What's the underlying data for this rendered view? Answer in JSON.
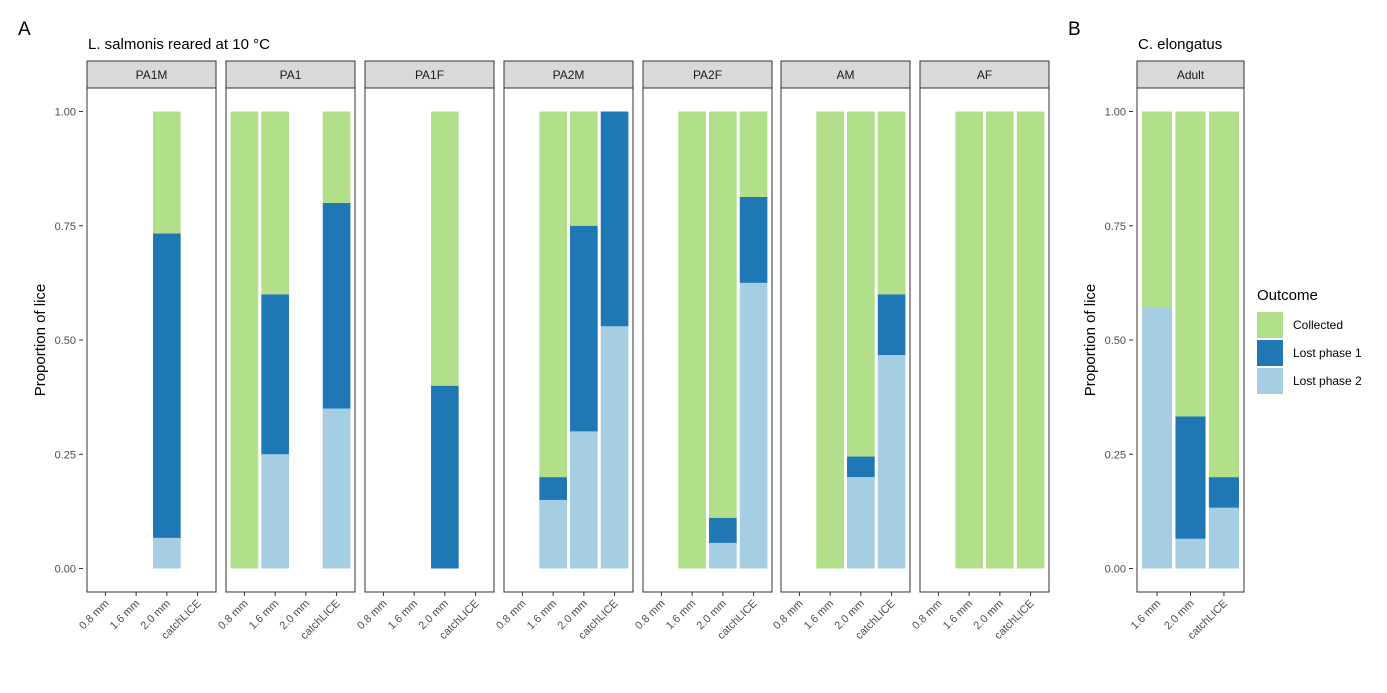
{
  "panel_labels": {
    "a": "A",
    "b": "B"
  },
  "colors": {
    "Collected": "#b2df8a",
    "Lost phase 1": "#1f78b4",
    "Lost phase 2": "#a6cee3",
    "strip_fill": "#d9d9d9",
    "border": "#333333"
  },
  "legend": {
    "title": "Outcome",
    "items": [
      "Collected",
      "Lost phase 1",
      "Lost phase 2"
    ]
  },
  "chart_data": [
    {
      "type": "bar",
      "stacked": true,
      "title": "L. salmonis reared at 10 °C",
      "ylabel": "Proportion of lice",
      "xlabel": "",
      "ylim": [
        0,
        1
      ],
      "yticks": [
        "0.00",
        "0.25",
        "0.50",
        "0.75",
        "1.00"
      ],
      "categories": [
        "0.8 mm",
        "1.6 mm",
        "2.0 mm",
        "catchLICE"
      ],
      "facets": [
        {
          "name": "PA1M",
          "bars": [
            null,
            null,
            {
              "Lost phase 2": 0.067,
              "Lost phase 1": 0.666,
              "Collected": 0.267
            },
            null
          ]
        },
        {
          "name": "PA1",
          "bars": [
            {
              "Lost phase 2": 0,
              "Lost phase 1": 0,
              "Collected": 1.0
            },
            {
              "Lost phase 2": 0.25,
              "Lost phase 1": 0.35,
              "Collected": 0.4
            },
            null,
            {
              "Lost phase 2": 0.35,
              "Lost phase 1": 0.45,
              "Collected": 0.2
            }
          ]
        },
        {
          "name": "PA1F",
          "bars": [
            null,
            null,
            {
              "Lost phase 2": 0,
              "Lost phase 1": 0.4,
              "Collected": 0.6
            },
            null
          ]
        },
        {
          "name": "PA2M",
          "bars": [
            null,
            {
              "Lost phase 2": 0.15,
              "Lost phase 1": 0.05,
              "Collected": 0.8
            },
            {
              "Lost phase 2": 0.3,
              "Lost phase 1": 0.45,
              "Collected": 0.25
            },
            {
              "Lost phase 2": 0.53,
              "Lost phase 1": 0.47,
              "Collected": 0
            }
          ]
        },
        {
          "name": "PA2F",
          "bars": [
            null,
            {
              "Lost phase 2": 0,
              "Lost phase 1": 0,
              "Collected": 1.0
            },
            {
              "Lost phase 2": 0.056,
              "Lost phase 1": 0.055,
              "Collected": 0.889
            },
            {
              "Lost phase 2": 0.625,
              "Lost phase 1": 0.188,
              "Collected": 0.187
            }
          ]
        },
        {
          "name": "AM",
          "bars": [
            null,
            {
              "Lost phase 2": 0,
              "Lost phase 1": 0,
              "Collected": 1.0
            },
            {
              "Lost phase 2": 0.2,
              "Lost phase 1": 0.045,
              "Collected": 0.755
            },
            {
              "Lost phase 2": 0.467,
              "Lost phase 1": 0.133,
              "Collected": 0.4
            }
          ]
        },
        {
          "name": "AF",
          "bars": [
            null,
            {
              "Lost phase 2": 0,
              "Lost phase 1": 0,
              "Collected": 1.0
            },
            {
              "Lost phase 2": 0,
              "Lost phase 1": 0,
              "Collected": 1.0
            },
            {
              "Lost phase 2": 0,
              "Lost phase 1": 0,
              "Collected": 1.0
            }
          ]
        }
      ]
    },
    {
      "type": "bar",
      "stacked": true,
      "title": "C. elongatus",
      "ylabel": "Proportion of lice",
      "xlabel": "",
      "ylim": [
        0,
        1
      ],
      "yticks": [
        "0.00",
        "0.25",
        "0.50",
        "0.75",
        "1.00"
      ],
      "categories": [
        "1.6 mm",
        "2.0 mm",
        "catchLICE"
      ],
      "facets": [
        {
          "name": "Adult",
          "bars": [
            {
              "Lost phase 2": 0.57,
              "Lost phase 1": 0,
              "Collected": 0.43
            },
            {
              "Lost phase 2": 0.065,
              "Lost phase 1": 0.268,
              "Collected": 0.667
            },
            {
              "Lost phase 2": 0.133,
              "Lost phase 1": 0.067,
              "Collected": 0.8
            }
          ]
        }
      ]
    }
  ]
}
